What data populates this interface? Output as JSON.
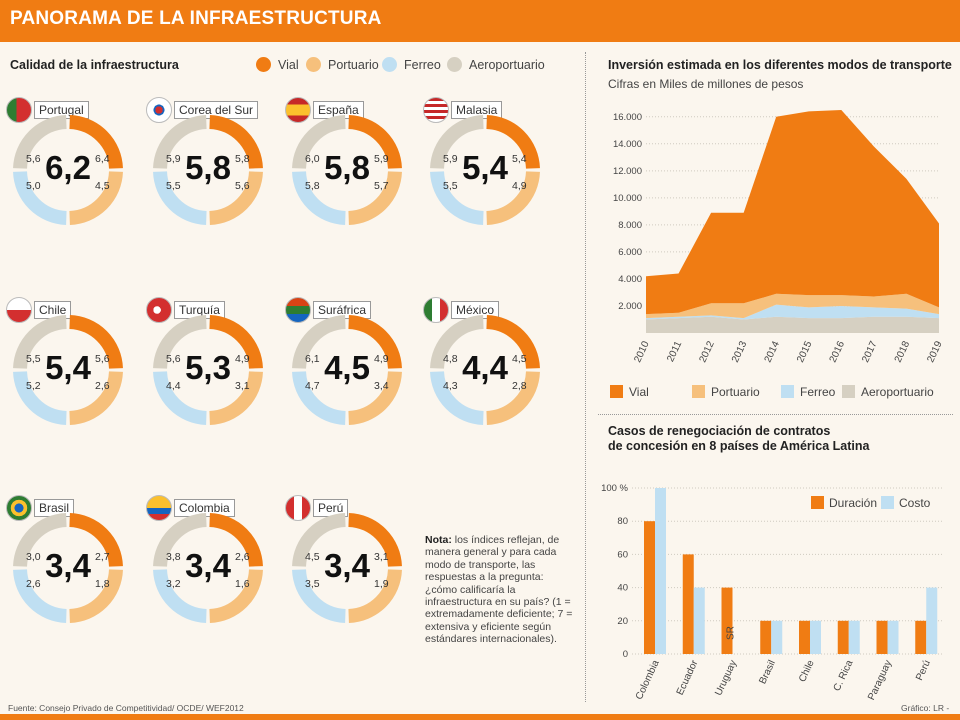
{
  "header": {
    "title": "PANORAMA DE LA INFRAESTRUCTURA"
  },
  "colors": {
    "vial": "#f07c13",
    "portuario": "#f6c07c",
    "ferreo": "#bfdff2",
    "aeroportuario": "#d6d0c2"
  },
  "quality": {
    "title": "Calidad de la infraestructura",
    "legend": [
      "Vial",
      "Portuario",
      "Ferreo",
      "Aeroportuario"
    ]
  },
  "countries": [
    {
      "name": "Portugal",
      "score": "6,2",
      "vial": "6,4",
      "portuario": "4,5",
      "ferreo": "5,0",
      "aero": "5,6"
    },
    {
      "name": "Corea del Sur",
      "score": "5,8",
      "vial": "5,8",
      "portuario": "5,6",
      "ferreo": "5,5",
      "aero": "5,9"
    },
    {
      "name": "España",
      "score": "5,8",
      "vial": "5,9",
      "portuario": "5,7",
      "ferreo": "5,8",
      "aero": "6,0"
    },
    {
      "name": "Malasia",
      "score": "5,4",
      "vial": "5,4",
      "portuario": "4,9",
      "ferreo": "5,5",
      "aero": "5,9"
    },
    {
      "name": "Chile",
      "score": "5,4",
      "vial": "5,6",
      "portuario": "2,6",
      "ferreo": "5,2",
      "aero": "5,5"
    },
    {
      "name": "Turquía",
      "score": "5,3",
      "vial": "4,9",
      "portuario": "3,1",
      "ferreo": "4,4",
      "aero": "5,6"
    },
    {
      "name": "Suráfrica",
      "score": "4,5",
      "vial": "4,9",
      "portuario": "3,4",
      "ferreo": "4,7",
      "aero": "6,1"
    },
    {
      "name": "México",
      "score": "4,4",
      "vial": "4,5",
      "portuario": "2,8",
      "ferreo": "4,3",
      "aero": "4,8"
    },
    {
      "name": "Brasil",
      "score": "3,4",
      "vial": "2,7",
      "portuario": "1,8",
      "ferreo": "2,6",
      "aero": "3,0"
    },
    {
      "name": "Colombia",
      "score": "3,4",
      "vial": "2,6",
      "portuario": "1,6",
      "ferreo": "3,2",
      "aero": "3,8"
    },
    {
      "name": "Perú",
      "score": "3,4",
      "vial": "3,1",
      "portuario": "1,9",
      "ferreo": "3,5",
      "aero": "4,5"
    }
  ],
  "note": {
    "bold": "Nota:",
    "text": " los índices reflejan, de manera general y para cada modo de transporte, las respuestas a la pregunta: ¿cómo calificaría la infraestructura en su país? (1 = extremadamente deficiente; 7 = extensiva y eficiente según estándares internacionales)."
  },
  "footer": {
    "source": "Fuente: Consejo Privado de Competitividad/ OCDE/ WEF2012",
    "credit": "Gráfico: LR - SJ"
  },
  "chart_data": [
    {
      "type": "area",
      "title": "Inversión estimada en los diferentes modos de transporte",
      "subtitle": "Cifras en Miles de millones de pesos",
      "x": [
        "2010",
        "2011",
        "2012",
        "2013",
        "2014",
        "2015",
        "2016",
        "2017",
        "2018",
        "2019"
      ],
      "series": [
        {
          "name": "Vial",
          "values": [
            2800,
            2900,
            6700,
            6700,
            13100,
            13600,
            13700,
            11100,
            8500,
            6200
          ]
        },
        {
          "name": "Portuario",
          "values": [
            300,
            300,
            900,
            1100,
            800,
            900,
            800,
            800,
            1100,
            500
          ]
        },
        {
          "name": "Ferreo",
          "values": [
            100,
            100,
            100,
            100,
            900,
            800,
            900,
            700,
            600,
            300
          ]
        },
        {
          "name": "Aeroportuario",
          "values": [
            1000,
            1100,
            1200,
            1000,
            1200,
            1100,
            1100,
            1200,
            1200,
            1100
          ]
        }
      ],
      "yticks": [
        "2.000",
        "4.000",
        "6.000",
        "8.000",
        "10.000",
        "12.000",
        "14.000",
        "16.000"
      ],
      "ylim": [
        0,
        16500
      ],
      "stacked": true,
      "legend": "bottom"
    },
    {
      "type": "bar",
      "title_line1": "Casos de renegociación de contratos",
      "title_line2": "de concesión en 8 países de América Latina",
      "categories": [
        "Colombia",
        "Ecuador",
        "Uruguay",
        "Brasil",
        "Chile",
        "C. Rica",
        "Paraguay",
        "Perú"
      ],
      "series": [
        {
          "name": "Duración",
          "values": [
            80,
            60,
            40,
            20,
            20,
            20,
            20,
            20
          ]
        },
        {
          "name": "Costo",
          "values": [
            100,
            40,
            null,
            20,
            20,
            20,
            20,
            40
          ]
        }
      ],
      "yticks": [
        "0",
        "20",
        "40",
        "60",
        "80",
        "100 %"
      ],
      "ylim": [
        0,
        100
      ],
      "annotation": "SR",
      "legend": "top-right"
    }
  ]
}
